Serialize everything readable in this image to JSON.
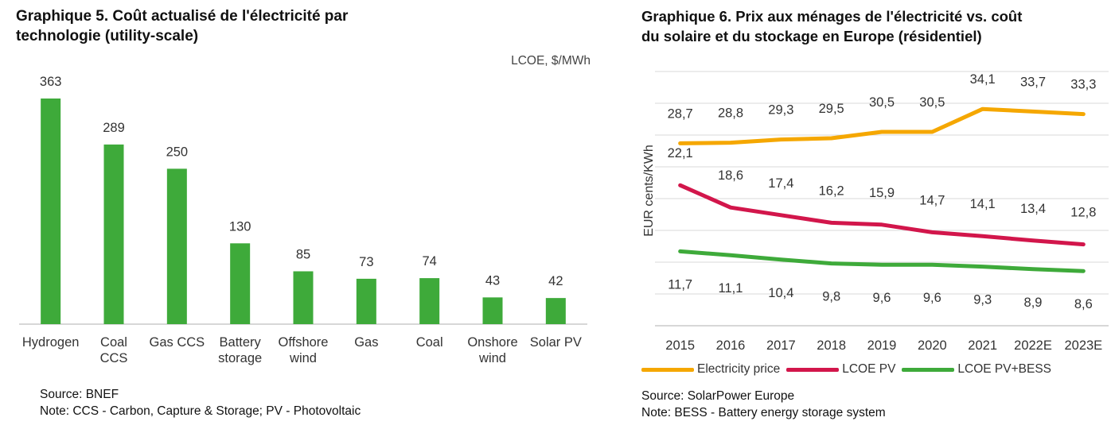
{
  "chart_data": [
    {
      "type": "bar",
      "title": "Graphique 5. Coût actualisé de l'électricité par\ntechnologie (utility-scale)",
      "ylabel": "LCOE, $/MWh",
      "xlabel": "",
      "categories": [
        "Hydrogen",
        "Coal\nCCS",
        "Gas CCS",
        "Battery\nstorage",
        "Offshore\nwind",
        "Gas",
        "Coal",
        "Onshore\nwind",
        "Solar PV"
      ],
      "values": [
        363,
        289,
        250,
        130,
        85,
        73,
        74,
        43,
        42
      ],
      "ylim": [
        0,
        400
      ],
      "grid": false,
      "colors": {
        "bar": "#3EAA3A",
        "axis": "#BFBFBF"
      },
      "source": "Source: BNEF",
      "note": "Note: CCS - Carbon, Capture & Storage; PV - Photovoltaic"
    },
    {
      "type": "line",
      "title": "Graphique 6. Prix aux ménages de l'électricité vs. coût\ndu solaire et du stockage en Europe (résidentiel)",
      "ylabel": "EUR cents/KWh",
      "xlabel": "",
      "x": [
        "2015",
        "2016",
        "2017",
        "2018",
        "2019",
        "2020",
        "2021",
        "2022E",
        "2023E"
      ],
      "ylim": [
        0,
        40
      ],
      "grid": true,
      "legend": "bottom",
      "series": [
        {
          "name": "Electricity price",
          "color": "#F5A700",
          "values": [
            28.7,
            28.8,
            29.3,
            29.5,
            30.5,
            30.5,
            34.1,
            33.7,
            33.3
          ],
          "labels": [
            "28,7",
            "28,8",
            "29,3",
            "29,5",
            "30,5",
            "30,5",
            "34,1",
            "33,7",
            "33,3"
          ]
        },
        {
          "name": "LCOE PV",
          "color": "#D2164B",
          "values": [
            22.1,
            18.6,
            17.4,
            16.2,
            15.9,
            14.7,
            14.1,
            13.4,
            12.8
          ],
          "labels": [
            "22,1",
            "18,6",
            "17,4",
            "16,2",
            "15,9",
            "14,7",
            "14,1",
            "13,4",
            "12,8"
          ]
        },
        {
          "name": "LCOE PV+BESS",
          "color": "#3EAA3A",
          "values": [
            11.7,
            11.1,
            10.4,
            9.8,
            9.6,
            9.6,
            9.3,
            8.9,
            8.6
          ],
          "labels": [
            "11,7",
            "11,1",
            "10,4",
            "9,8",
            "9,6",
            "9,6",
            "9,3",
            "8,9",
            "8,6"
          ]
        }
      ],
      "colors": {
        "grid": "#D9D9D9"
      },
      "source": "Source: SolarPower Europe",
      "note": "Note: BESS - Battery energy storage system"
    }
  ]
}
